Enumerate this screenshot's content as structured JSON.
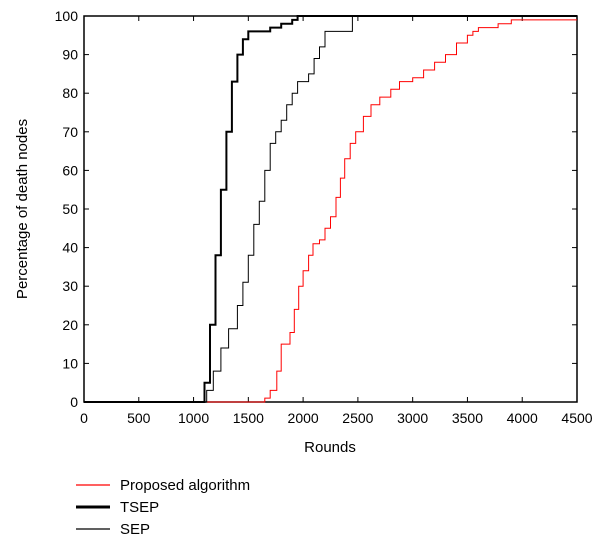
{
  "chart_data": {
    "type": "line",
    "title": "",
    "xlabel": "Rounds",
    "ylabel": "Percentage of death nodes",
    "xlim": [
      0,
      4500
    ],
    "ylim": [
      0,
      100
    ],
    "x_ticks": [
      "0",
      "500",
      "1000",
      "1500",
      "2000",
      "2500",
      "3000",
      "3500",
      "4000",
      "4500"
    ],
    "y_ticks": [
      "0",
      "10",
      "20",
      "30",
      "40",
      "50",
      "60",
      "70",
      "80",
      "90",
      "100"
    ],
    "grid": false,
    "legend_position": "below",
    "series": [
      {
        "name": "Proposed algorithm",
        "color": "#ff0000",
        "line_style": "thin",
        "points": [
          [
            0,
            0
          ],
          [
            1600,
            0
          ],
          [
            1650,
            1
          ],
          [
            1700,
            3
          ],
          [
            1760,
            8
          ],
          [
            1800,
            15
          ],
          [
            1850,
            15
          ],
          [
            1880,
            18
          ],
          [
            1920,
            24
          ],
          [
            1960,
            30
          ],
          [
            2000,
            34
          ],
          [
            2050,
            38
          ],
          [
            2090,
            41
          ],
          [
            2150,
            42
          ],
          [
            2200,
            45
          ],
          [
            2250,
            48
          ],
          [
            2300,
            53
          ],
          [
            2340,
            58
          ],
          [
            2380,
            63
          ],
          [
            2430,
            67
          ],
          [
            2480,
            70
          ],
          [
            2550,
            74
          ],
          [
            2620,
            77
          ],
          [
            2700,
            79
          ],
          [
            2800,
            81
          ],
          [
            2880,
            83
          ],
          [
            3000,
            84
          ],
          [
            3100,
            86
          ],
          [
            3200,
            88
          ],
          [
            3300,
            90
          ],
          [
            3400,
            93
          ],
          [
            3500,
            95
          ],
          [
            3550,
            96
          ],
          [
            3600,
            97
          ],
          [
            3700,
            97
          ],
          [
            3780,
            98
          ],
          [
            3900,
            99
          ],
          [
            4000,
            99
          ],
          [
            4500,
            99
          ]
        ]
      },
      {
        "name": "TSEP",
        "color": "#000000",
        "line_style": "thick",
        "points": [
          [
            0,
            0
          ],
          [
            1050,
            0
          ],
          [
            1100,
            5
          ],
          [
            1150,
            20
          ],
          [
            1200,
            38
          ],
          [
            1250,
            55
          ],
          [
            1300,
            70
          ],
          [
            1350,
            83
          ],
          [
            1400,
            90
          ],
          [
            1450,
            94
          ],
          [
            1500,
            96
          ],
          [
            1600,
            96
          ],
          [
            1700,
            97
          ],
          [
            1800,
            98
          ],
          [
            1900,
            99
          ],
          [
            1950,
            100
          ],
          [
            4500,
            100
          ]
        ]
      },
      {
        "name": "SEP",
        "color": "#000000",
        "line_style": "thin",
        "points": [
          [
            0,
            0
          ],
          [
            1080,
            0
          ],
          [
            1120,
            3
          ],
          [
            1180,
            8
          ],
          [
            1250,
            14
          ],
          [
            1320,
            19
          ],
          [
            1400,
            25
          ],
          [
            1450,
            31
          ],
          [
            1500,
            38
          ],
          [
            1550,
            46
          ],
          [
            1600,
            52
          ],
          [
            1650,
            60
          ],
          [
            1700,
            67
          ],
          [
            1750,
            70
          ],
          [
            1800,
            73
          ],
          [
            1850,
            77
          ],
          [
            1900,
            80
          ],
          [
            1950,
            83
          ],
          [
            2000,
            83
          ],
          [
            2050,
            85
          ],
          [
            2100,
            89
          ],
          [
            2150,
            92
          ],
          [
            2200,
            96
          ],
          [
            2300,
            96
          ],
          [
            2400,
            96
          ],
          [
            2450,
            100
          ],
          [
            4500,
            100
          ]
        ]
      }
    ]
  }
}
